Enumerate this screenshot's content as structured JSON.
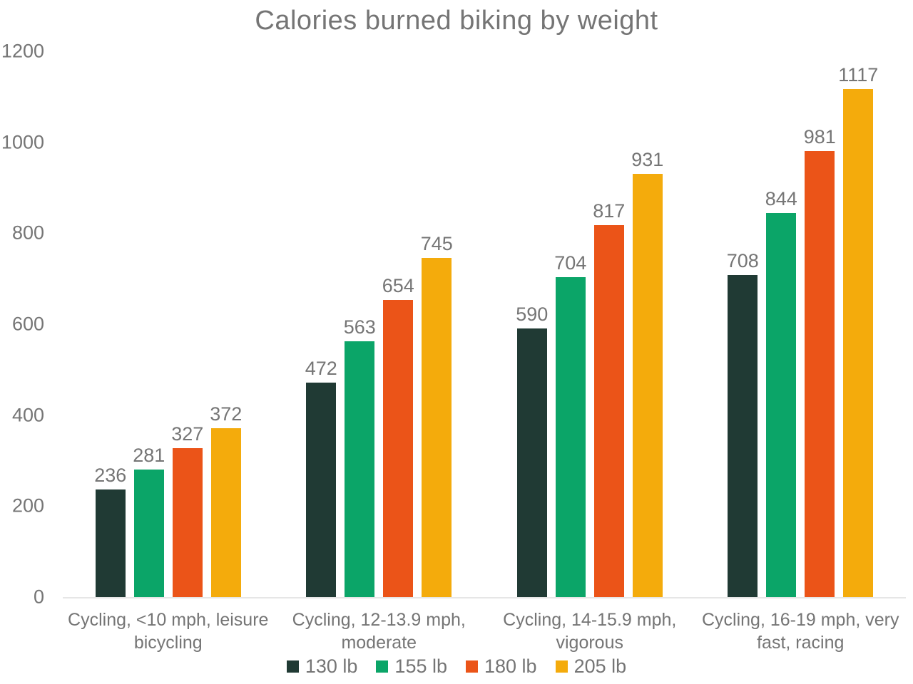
{
  "chart_data": {
    "type": "bar",
    "title": "Calories burned biking by weight",
    "categories": [
      "Cycling, <10 mph, leisure bicycling",
      "Cycling, 12-13.9 mph, moderate",
      "Cycling, 14-15.9 mph, vigorous",
      "Cycling, 16-19 mph, very fast, racing"
    ],
    "series": [
      {
        "name": "130 lb",
        "color": "#203a34",
        "values": [
          236,
          472,
          590,
          708
        ]
      },
      {
        "name": "155 lb",
        "color": "#0ba568",
        "values": [
          281,
          563,
          704,
          844
        ]
      },
      {
        "name": "180 lb",
        "color": "#eb5418",
        "values": [
          327,
          654,
          817,
          981
        ]
      },
      {
        "name": "205 lb",
        "color": "#f4ab0c",
        "values": [
          372,
          745,
          931,
          1117
        ]
      }
    ],
    "xlabel": "",
    "ylabel": "",
    "ylim": [
      0,
      1200
    ],
    "yticks": [
      0,
      200,
      400,
      600,
      800,
      1000,
      1200
    ],
    "grid": false,
    "legend_position": "bottom",
    "value_labels_shown": true,
    "text_color": "#757575",
    "axis_line_color": "#e6e6e6",
    "background_color": "#ffffff"
  }
}
